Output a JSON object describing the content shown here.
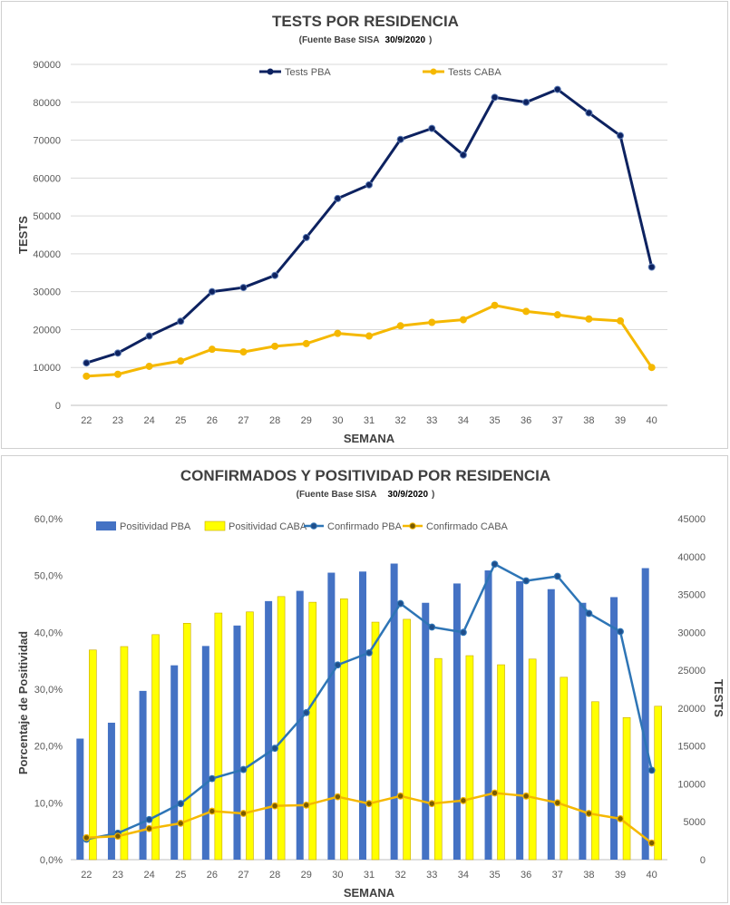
{
  "chart_data": [
    {
      "type": "line",
      "title": "TESTS POR RESIDENCIA",
      "subtitle_prefix": "(Fuente Base SISA",
      "subtitle_date": "30/9/2020",
      "subtitle_suffix": ")",
      "xlabel": "SEMANA",
      "ylabel": "TESTS",
      "ylim": [
        0,
        90000
      ],
      "yticks": [
        "0",
        "10000",
        "20000",
        "30000",
        "40000",
        "50000",
        "60000",
        "70000",
        "80000",
        "90000"
      ],
      "categories": [
        "22",
        "23",
        "24",
        "25",
        "26",
        "27",
        "28",
        "29",
        "30",
        "31",
        "32",
        "33",
        "34",
        "35",
        "36",
        "37",
        "38",
        "39",
        "40"
      ],
      "grid": true,
      "legend_position": "top",
      "series": [
        {
          "name": "Tests PBA",
          "color": "#0d2260",
          "values": [
            11200,
            13800,
            18300,
            22200,
            30000,
            31100,
            34300,
            44300,
            54600,
            58200,
            70200,
            73100,
            66100,
            81300,
            80000,
            83400,
            77200,
            71200,
            36500
          ]
        },
        {
          "name": "Tests CABA",
          "color": "#f5b800",
          "values": [
            7700,
            8200,
            10300,
            11700,
            14800,
            14100,
            15600,
            16300,
            19000,
            18300,
            21000,
            21900,
            22600,
            26400,
            24800,
            23900,
            22800,
            22300,
            10000
          ]
        }
      ]
    },
    {
      "type": "bar",
      "title": "CONFIRMADOS Y POSITIVIDAD POR RESIDENCIA",
      "subtitle_prefix": "(Fuente Base SISA",
      "subtitle_date": "30/9/2020",
      "subtitle_suffix": ")",
      "xlabel": "SEMANA",
      "ylabel_left": "Porcentaje de Positividad",
      "ylabel_right": "TESTS",
      "ylim_left": [
        0,
        60
      ],
      "ylim_right": [
        0,
        45000
      ],
      "yticks_left": [
        "0,0%",
        "10,0%",
        "20,0%",
        "30,0%",
        "40,0%",
        "50,0%",
        "60,0%"
      ],
      "yticks_right": [
        "0",
        "5000",
        "10000",
        "15000",
        "20000",
        "25000",
        "30000",
        "35000",
        "40000",
        "45000"
      ],
      "categories": [
        "22",
        "23",
        "24",
        "25",
        "26",
        "27",
        "28",
        "29",
        "30",
        "31",
        "32",
        "33",
        "34",
        "35",
        "36",
        "37",
        "38",
        "39",
        "40"
      ],
      "legend_position": "top",
      "bar_series": [
        {
          "name": "Positividad PBA",
          "color": "#4472c4",
          "values": [
            21.3,
            24.1,
            29.7,
            34.2,
            37.6,
            41.2,
            45.5,
            47.3,
            50.5,
            50.7,
            52.1,
            45.2,
            48.6,
            50.9,
            49.0,
            47.6,
            45.2,
            46.2,
            51.3
          ]
        },
        {
          "name": "Positividad CABA",
          "color": "#ffff00",
          "values": [
            36.9,
            37.5,
            39.6,
            41.6,
            43.4,
            43.6,
            46.3,
            45.3,
            45.9,
            41.8,
            42.3,
            35.4,
            35.9,
            34.3,
            35.3,
            32.1,
            27.8,
            25.0,
            27.0
          ]
        }
      ],
      "line_series": [
        {
          "name": "Confirmado PBA",
          "color": "#2e75b6",
          "values": [
            2700,
            3500,
            5300,
            7400,
            10700,
            11900,
            14700,
            19400,
            25700,
            27300,
            33800,
            30700,
            30000,
            39000,
            36800,
            37400,
            32500,
            30100,
            11800
          ]
        },
        {
          "name": "Confirmado CABA",
          "color": "#f5b800",
          "values": [
            2900,
            3100,
            4100,
            4800,
            6400,
            6100,
            7100,
            7200,
            8300,
            7400,
            8400,
            7400,
            7800,
            8800,
            8400,
            7500,
            6100,
            5400,
            2200
          ]
        }
      ]
    }
  ]
}
